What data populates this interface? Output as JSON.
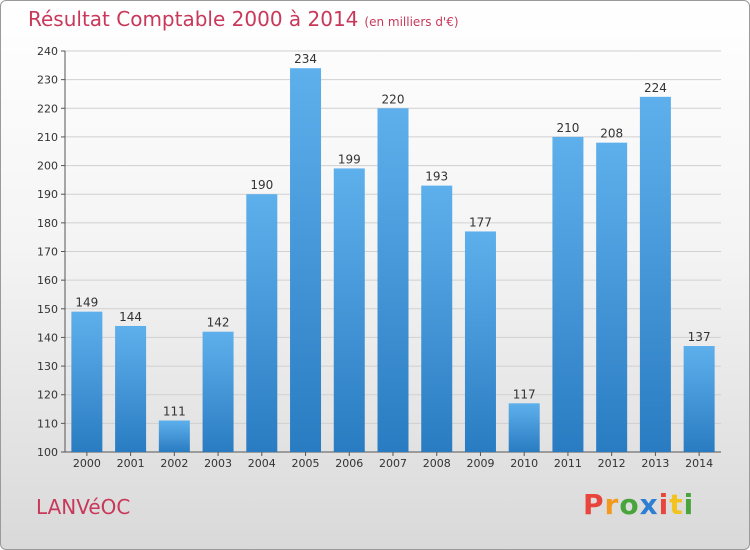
{
  "chart_data": {
    "type": "bar",
    "title": "Résultat Comptable 2000 à 2014",
    "subtitle": "(en milliers d'€)",
    "categories": [
      "2000",
      "2001",
      "2002",
      "2003",
      "2004",
      "2005",
      "2006",
      "2007",
      "2008",
      "2009",
      "2010",
      "2011",
      "2012",
      "2013",
      "2014"
    ],
    "values": [
      149,
      144,
      111,
      142,
      190,
      234,
      199,
      220,
      193,
      177,
      117,
      210,
      208,
      224,
      137
    ],
    "ylim": [
      100,
      240
    ],
    "yticks": [
      100,
      110,
      120,
      130,
      140,
      150,
      160,
      170,
      180,
      190,
      200,
      210,
      220,
      230,
      240
    ],
    "grid": true,
    "bar_color": "#4a9ee0"
  },
  "footer": {
    "city": "LANVéOC",
    "brand": [
      "P",
      "r",
      "o",
      "x",
      "i",
      "t",
      "i"
    ],
    "brand_colors": [
      "#e8463c",
      "#f29a1e",
      "#4aa43c",
      "#2e7fd1",
      "#e8463c",
      "#f2c21e",
      "#4aa43c"
    ]
  }
}
